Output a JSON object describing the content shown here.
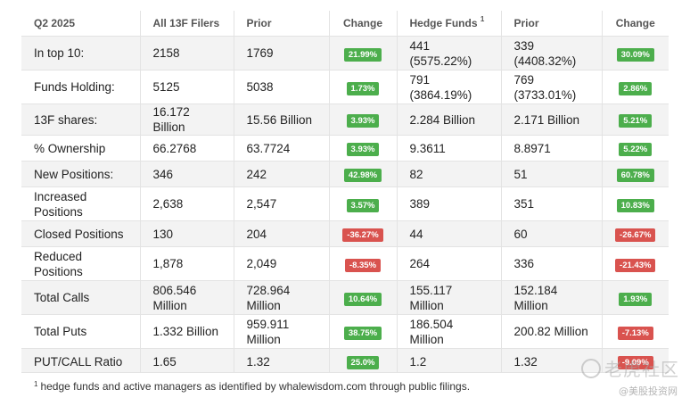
{
  "header": {
    "col0": "Q2 2025",
    "col1": "All 13F Filers",
    "col2": "Prior",
    "col3": "Change",
    "col4": "Hedge Funds",
    "col4_sup": "1",
    "col5": "Prior",
    "col6": "Change"
  },
  "rows": [
    {
      "label": "In top 10:",
      "all": "2158",
      "prior": "1769",
      "change": "21.99%",
      "dir": "up",
      "hf_line1": "441",
      "hf_line2": "(5575.22%)",
      "hf_prior_line1": "339",
      "hf_prior_line2": "(4408.32%)",
      "hf_change": "30.09%",
      "hf_dir": "up"
    },
    {
      "label": "Funds Holding:",
      "all": "5125",
      "prior": "5038",
      "change": "1.73%",
      "dir": "up",
      "hf_line1": "791",
      "hf_line2": "(3864.19%)",
      "hf_prior_line1": "769",
      "hf_prior_line2": "(3733.01%)",
      "hf_change": "2.86%",
      "hf_dir": "up"
    },
    {
      "label": "13F shares:",
      "all": "16.172 Billion",
      "prior": "15.56 Billion",
      "change": "3.93%",
      "dir": "up",
      "hf_line1": "2.284 Billion",
      "hf_line2": "",
      "hf_prior_line1": "2.171 Billion",
      "hf_prior_line2": "",
      "hf_change": "5.21%",
      "hf_dir": "up"
    },
    {
      "label": "% Ownership",
      "all": "66.2768",
      "prior": "63.7724",
      "change": "3.93%",
      "dir": "up",
      "hf_line1": "9.3611",
      "hf_line2": "",
      "hf_prior_line1": "8.8971",
      "hf_prior_line2": "",
      "hf_change": "5.22%",
      "hf_dir": "up"
    },
    {
      "label": "New Positions:",
      "all": "346",
      "prior": "242",
      "change": "42.98%",
      "dir": "up",
      "hf_line1": "82",
      "hf_line2": "",
      "hf_prior_line1": "51",
      "hf_prior_line2": "",
      "hf_change": "60.78%",
      "hf_dir": "up"
    },
    {
      "label": "Increased Positions",
      "all": "2,638",
      "prior": "2,547",
      "change": "3.57%",
      "dir": "up",
      "hf_line1": "389",
      "hf_line2": "",
      "hf_prior_line1": "351",
      "hf_prior_line2": "",
      "hf_change": "10.83%",
      "hf_dir": "up"
    },
    {
      "label": "Closed Positions",
      "all": "130",
      "prior": "204",
      "change": "-36.27%",
      "dir": "down",
      "hf_line1": "44",
      "hf_line2": "",
      "hf_prior_line1": "60",
      "hf_prior_line2": "",
      "hf_change": "-26.67%",
      "hf_dir": "down"
    },
    {
      "label": "Reduced Positions",
      "all": "1,878",
      "prior": "2,049",
      "change": "-8.35%",
      "dir": "down",
      "hf_line1": "264",
      "hf_line2": "",
      "hf_prior_line1": "336",
      "hf_prior_line2": "",
      "hf_change": "-21.43%",
      "hf_dir": "down"
    },
    {
      "label": "Total Calls",
      "all": "806.546 Million",
      "prior": "728.964 Million",
      "change": "10.64%",
      "dir": "up",
      "hf_line1": "155.117 Million",
      "hf_line2": "",
      "hf_prior_line1": "152.184 Million",
      "hf_prior_line2": "",
      "hf_change": "1.93%",
      "hf_dir": "up"
    },
    {
      "label": "Total Puts",
      "all": "1.332 Billion",
      "prior": "959.911 Million",
      "change": "38.75%",
      "dir": "up",
      "hf_line1": "186.504 Million",
      "hf_line2": "",
      "hf_prior_line1": "200.82 Million",
      "hf_prior_line2": "",
      "hf_change": "-7.13%",
      "hf_dir": "down"
    },
    {
      "label": "PUT/CALL Ratio",
      "all": "1.65",
      "prior": "1.32",
      "change": "25.0%",
      "dir": "up",
      "hf_line1": "1.2",
      "hf_line2": "",
      "hf_prior_line1": "1.32",
      "hf_prior_line2": "",
      "hf_change": "-9.09%",
      "hf_dir": "down"
    }
  ],
  "row_heights": [
    38,
    38,
    29,
    29,
    29,
    38,
    29,
    38,
    38,
    38,
    29
  ],
  "footnote": {
    "sup": "1",
    "text": "hedge funds and active managers as identified by whalewisdom.com through public filings."
  },
  "watermark": {
    "main": "老虎社区",
    "sub": "@美股投资网"
  },
  "colors": {
    "up": "#4cae4c",
    "down": "#d9534f",
    "row_alt": "#f3f3f3"
  }
}
